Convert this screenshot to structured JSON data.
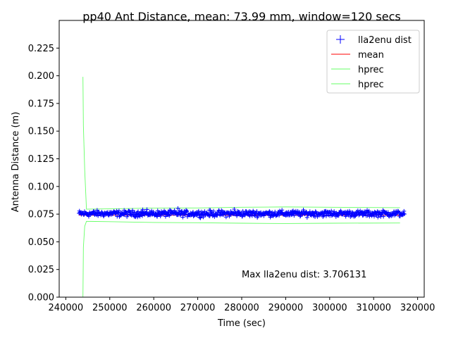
{
  "chart_data": {
    "type": "line",
    "title": "pp40 Ant Distance, mean: 73.99 mm, window=120 secs",
    "xlabel": "Time (sec)",
    "ylabel": "Antenna Distance (m)",
    "xlim": [
      238500,
      321500
    ],
    "ylim": [
      0.0,
      0.25
    ],
    "xticks": [
      240000,
      250000,
      260000,
      270000,
      280000,
      290000,
      300000,
      310000,
      320000
    ],
    "xtick_labels": [
      "240000",
      "250000",
      "260000",
      "270000",
      "280000",
      "290000",
      "300000",
      "310000",
      "320000"
    ],
    "yticks": [
      0.0,
      0.025,
      0.05,
      0.075,
      0.1,
      0.125,
      0.15,
      0.175,
      0.2,
      0.225
    ],
    "ytick_labels": [
      "0.000",
      "0.025",
      "0.050",
      "0.075",
      "0.100",
      "0.125",
      "0.150",
      "0.175",
      "0.200",
      "0.225"
    ],
    "grid": false,
    "legend_position": "top-right",
    "annotation": {
      "text": "Max lla2enu dist: 3.706131",
      "x": 280000,
      "y": 0.021,
      "color": "#ff0000"
    },
    "series": [
      {
        "name": "lla2enu dist",
        "kind": "marker",
        "marker": "+",
        "color": "#0000ff",
        "x_range": [
          243000,
          317000
        ],
        "center": 0.0755,
        "spread": 0.0025,
        "count": 700,
        "outliers": [
          [
            265500,
            0.0802
          ],
          [
            278300,
            0.0795
          ],
          [
            257500,
            0.079
          ]
        ]
      },
      {
        "name": "mean",
        "kind": "line",
        "color": "#ff0000",
        "x": [
          243000,
          316000
        ],
        "y": [
          0.07399,
          0.07399
        ]
      },
      {
        "name": "hprec",
        "kind": "line",
        "color": "#66ff66",
        "x": [
          243900,
          244000,
          244300,
          244700,
          250000,
          260000,
          270000,
          280000,
          290000,
          300000,
          316000
        ],
        "y": [
          0.199,
          0.155,
          0.115,
          0.0795,
          0.0798,
          0.0805,
          0.0806,
          0.0812,
          0.0815,
          0.0812,
          0.0808
        ]
      },
      {
        "name": "hprec",
        "kind": "line",
        "color": "#66ff66",
        "x": [
          243900,
          244000,
          244300,
          244700,
          250000,
          260000,
          270000,
          280000,
          290000,
          300000,
          316000
        ],
        "y": [
          0.0,
          0.045,
          0.064,
          0.0685,
          0.0682,
          0.0675,
          0.0672,
          0.0668,
          0.0665,
          0.0668,
          0.067
        ]
      }
    ]
  }
}
